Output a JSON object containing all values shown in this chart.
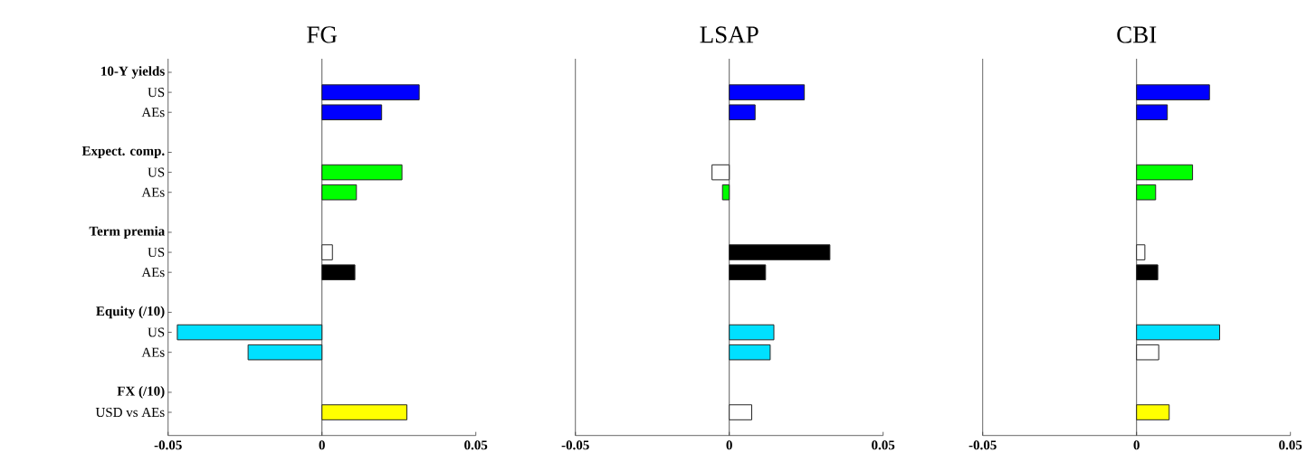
{
  "chart_data": [
    {
      "type": "bar",
      "title": "FG",
      "orientation": "horizontal",
      "categories": [
        "10-Y yields",
        "US",
        "AEs",
        null,
        "Expect. comp.",
        "US",
        "AEs",
        null,
        "Term premia",
        "US",
        "AEs",
        null,
        "Equity (/10)",
        "US",
        "AEs",
        null,
        "FX (/10)",
        "USD vs AEs"
      ],
      "values": [
        null,
        0.0316,
        0.0194,
        null,
        null,
        0.026,
        0.0112,
        null,
        null,
        0.0034,
        0.0107,
        null,
        null,
        -0.047,
        -0.024,
        null,
        null,
        0.0276
      ],
      "colors": [
        null,
        "#0000ff",
        "#0000ff",
        null,
        null,
        "#00ff00",
        "#00ff00",
        null,
        null,
        "#ffffff",
        "#000000",
        null,
        null,
        "#00e0ff",
        "#00e0ff",
        null,
        null,
        "#ffff00"
      ],
      "xlim": [
        -0.05,
        0.05
      ],
      "xticks": [
        -0.05,
        0,
        0.05
      ],
      "ref_lines": [
        {
          "axis": "x",
          "value": 0
        }
      ]
    },
    {
      "type": "bar",
      "title": "LSAP",
      "orientation": "horizontal",
      "values": [
        null,
        0.0244,
        0.0084,
        null,
        null,
        -0.0056,
        -0.0022,
        null,
        null,
        0.0327,
        0.0118,
        null,
        null,
        0.0145,
        0.0133,
        null,
        null,
        0.0073
      ],
      "colors": [
        null,
        "#0000ff",
        "#0000ff",
        null,
        null,
        "#ffffff",
        "#00ff00",
        null,
        null,
        "#000000",
        "#000000",
        null,
        null,
        "#00e0ff",
        "#00e0ff",
        null,
        null,
        "#ffffff"
      ],
      "xlim": [
        -0.05,
        0.05
      ],
      "xticks": [
        -0.05,
        0,
        0.05
      ],
      "ref_lines": [
        {
          "axis": "x",
          "value": 0
        }
      ]
    },
    {
      "type": "bar",
      "title": "CBI",
      "orientation": "horizontal",
      "values": [
        null,
        0.0237,
        0.01,
        null,
        null,
        0.0182,
        0.0062,
        null,
        null,
        0.0027,
        0.0069,
        null,
        null,
        0.027,
        0.0072,
        null,
        null,
        0.0106
      ],
      "colors": [
        null,
        "#0000ff",
        "#0000ff",
        null,
        null,
        "#00ff00",
        "#00ff00",
        null,
        null,
        "#ffffff",
        "#000000",
        null,
        null,
        "#00e0ff",
        "#ffffff",
        null,
        null,
        "#ffff00"
      ],
      "xlim": [
        -0.05,
        0.05
      ],
      "xticks": [
        -0.05,
        0,
        0.05
      ],
      "ref_lines": [
        {
          "axis": "x",
          "value": 0
        }
      ]
    }
  ]
}
